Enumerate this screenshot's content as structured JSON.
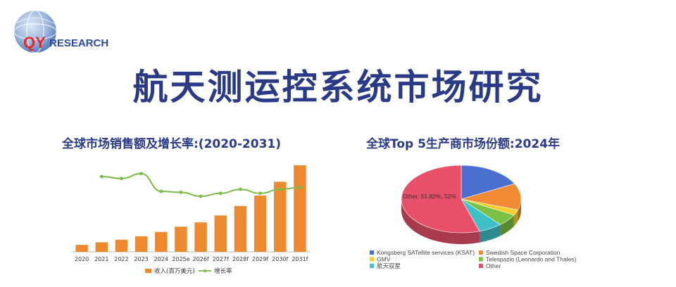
{
  "header": {
    "logo_text_q": "QY",
    "logo_text_rest": "RESEARCH",
    "title": "航天测运控系统市场研究"
  },
  "colors": {
    "title": "#2a3a86",
    "bar": "#ed8a30",
    "line": "#7cbb4a",
    "logo_red": "#e02a2a",
    "logo_blue": "#2a4aa0"
  },
  "left_chart": {
    "subtitle": "全球市场销售额及增长率:(2020-2031)"
  },
  "right_chart": {
    "subtitle": "全球Top 5生产商市场份额:2024年"
  },
  "chart_data": [
    {
      "type": "bar",
      "title": "全球市场销售额及增长率:(2020-2031)",
      "categories": [
        "2020",
        "2021",
        "2022",
        "2023",
        "2024",
        "2025e",
        "2026f",
        "2027f",
        "2028f",
        "2029f",
        "2030f",
        "2031f"
      ],
      "series": [
        {
          "name": "收入(百万美元)",
          "type": "bar",
          "values": [
            8,
            11,
            14,
            18,
            23,
            29,
            34,
            42,
            53,
            65,
            81,
            100
          ]
        },
        {
          "name": "增长率",
          "type": "line",
          "values": [
            null,
            75,
            73,
            78,
            60,
            59,
            55,
            58,
            62,
            58,
            62,
            64
          ]
        }
      ],
      "legend": "bottom",
      "grid": false
    },
    {
      "type": "pie",
      "title": "全球Top 5生产商市场份额:2024年",
      "labels": [
        "Kongsberg SATellite services (KSAT)",
        "Swedish Space Corporation",
        "GMV",
        "Telespazio (Leonardo and Thales)",
        "航天驭星",
        "Other"
      ],
      "values": [
        16.5,
        12.0,
        2.5,
        5.5,
        6.0,
        51.82
      ],
      "colors": [
        "#4a6fd0",
        "#f08a34",
        "#f6cf2c",
        "#7ac043",
        "#3fbfc8",
        "#e8506a"
      ],
      "annotation": "Other, 51.82%, 52%",
      "legend": "bottom"
    }
  ]
}
